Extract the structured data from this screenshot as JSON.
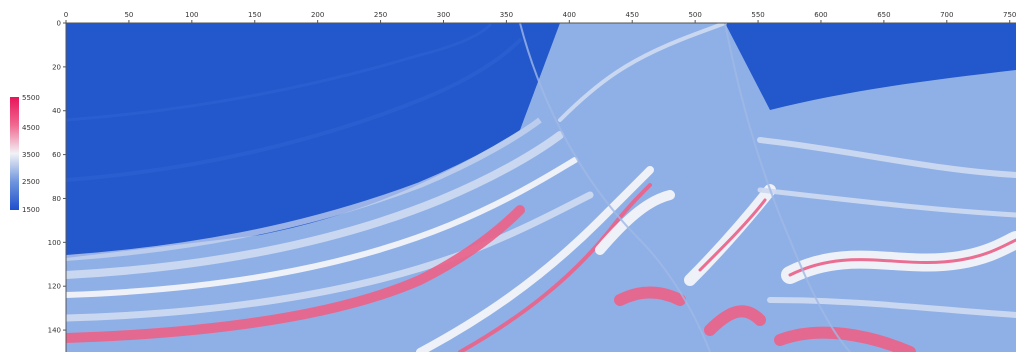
{
  "section_view": {
    "x_axis": {
      "ticks": [
        "0",
        "50",
        "100",
        "150",
        "200",
        "250",
        "300",
        "350",
        "400",
        "450",
        "500",
        "550",
        "600",
        "650",
        "700",
        "750"
      ],
      "range": [
        0,
        755
      ]
    },
    "y_axis": {
      "ticks": [
        "0",
        "20",
        "40",
        "60",
        "80",
        "100",
        "120",
        "140"
      ],
      "range": [
        0,
        150
      ]
    },
    "colorbar": {
      "labels": [
        "5500",
        "4500",
        "3500",
        "2500",
        "1500"
      ],
      "range": [
        1500,
        5500
      ],
      "colors": {
        "low": "#1f4fcc",
        "mid_low": "#6f95dd",
        "mid": "#f2f2f6",
        "mid_high": "#f06a92",
        "high": "#e8145a"
      }
    },
    "palette": {
      "deep": "#2357cc",
      "mid": "#8fb0e6",
      "light": "#cdd9f0",
      "white": "#f3f4f8",
      "pink": "#e9658c"
    }
  }
}
